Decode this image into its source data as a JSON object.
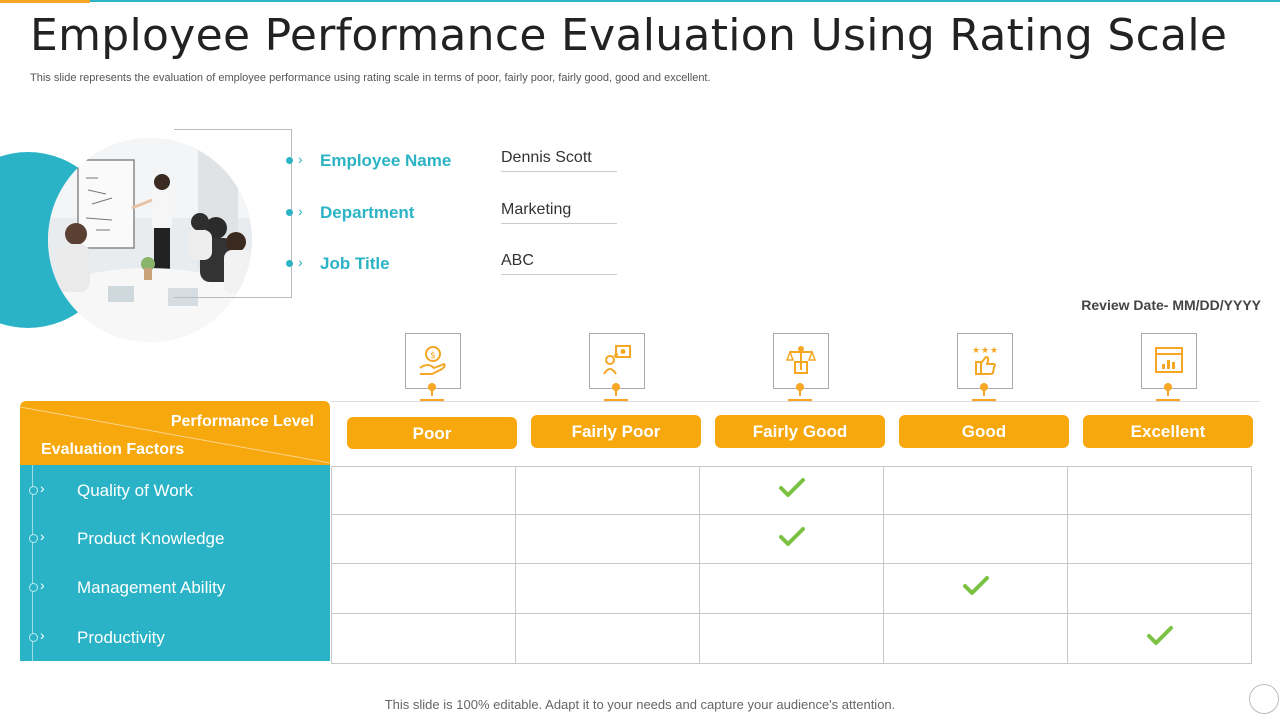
{
  "title": "Employee Performance Evaluation Using Rating Scale",
  "subtitle": "This slide represents the evaluation of employee performance using rating scale in terms of poor, fairly poor, fairly good, good and excellent.",
  "employee": {
    "fields": [
      {
        "label": "Employee Name",
        "value": "Dennis Scott"
      },
      {
        "label": "Department",
        "value": "Marketing"
      },
      {
        "label": "Job Title",
        "value": "ABC"
      }
    ]
  },
  "review_date": "Review Date- MM/DD/YYYY",
  "table": {
    "header_level": "Performance Level",
    "header_factors": "Evaluation Factors",
    "levels": [
      "Poor",
      "Fairly Poor",
      "Fairly Good",
      "Good",
      "Excellent"
    ],
    "level_icons": [
      "hand-coin-icon",
      "person-money-icon",
      "balance-scale-icon",
      "thumbs-up-stars-icon",
      "chart-frame-icon"
    ],
    "factors": [
      {
        "name": "Quality of Work",
        "rating": "Fairly Good"
      },
      {
        "name": "Product Knowledge",
        "rating": "Fairly Good"
      },
      {
        "name": "Management Ability",
        "rating": "Good"
      },
      {
        "name": "Productivity",
        "rating": "Excellent"
      }
    ]
  },
  "colors": {
    "teal": "#2ab3c7",
    "orange": "#f7a80d",
    "check": "#7cc242"
  },
  "footer": "This slide is 100% editable. Adapt it to your needs and capture your audience's attention."
}
